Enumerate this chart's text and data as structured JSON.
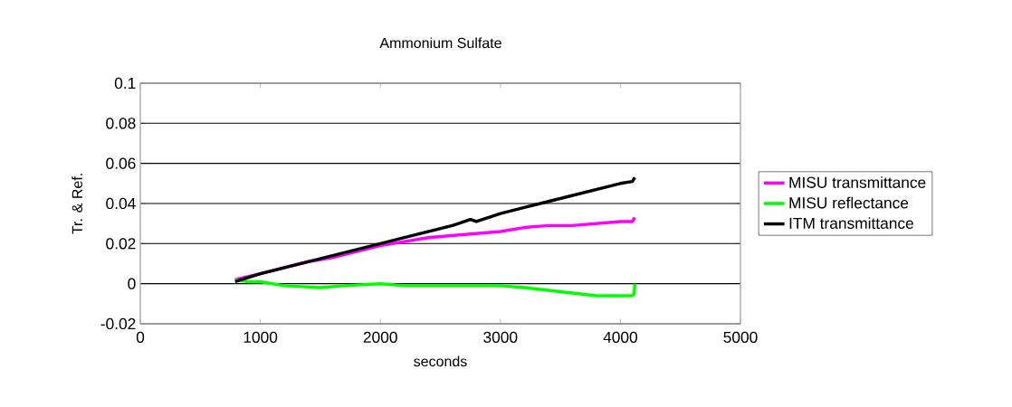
{
  "chart_data": {
    "type": "line",
    "title": "Ammonium Sulfate",
    "xlabel": "seconds",
    "ylabel": "Tr. & Ref.",
    "xlim": [
      0,
      5000
    ],
    "xticks": [
      0,
      1000,
      2000,
      3000,
      4000,
      5000
    ],
    "ylim": [
      -0.02,
      0.1
    ],
    "yticks": [
      -0.02,
      0,
      0.02,
      0.04,
      0.06,
      0.08,
      0.1
    ],
    "grid": "y",
    "legend": "right",
    "marker": "none",
    "line_style": "solid",
    "series": [
      {
        "name": "MISU transmittance",
        "color": "#ff00ff",
        "x": [
          790,
          1000,
          1200,
          1400,
          1600,
          1800,
          2000,
          2200,
          2400,
          2600,
          2800,
          3000,
          3200,
          3400,
          3600,
          3800,
          4000,
          4100,
          4120
        ],
        "values": [
          0.002,
          0.005,
          0.008,
          0.011,
          0.013,
          0.016,
          0.019,
          0.021,
          0.023,
          0.024,
          0.025,
          0.026,
          0.028,
          0.029,
          0.029,
          0.03,
          0.031,
          0.031,
          0.033
        ]
      },
      {
        "name": "MISU reflectance",
        "color": "#00ff00",
        "x": [
          790,
          900,
          1000,
          1200,
          1500,
          1700,
          2000,
          2200,
          2400,
          2600,
          2800,
          3000,
          3200,
          3500,
          3800,
          4000,
          4100,
          4115,
          4120
        ],
        "values": [
          0.002,
          0.001,
          0.001,
          -0.001,
          -0.002,
          -0.001,
          0.0,
          -0.001,
          -0.001,
          -0.001,
          -0.001,
          -0.001,
          -0.002,
          -0.004,
          -0.006,
          -0.006,
          -0.006,
          -0.005,
          0.0
        ]
      },
      {
        "name": "ITM transmittance",
        "color": "#000000",
        "x": [
          790,
          1000,
          1200,
          1400,
          1600,
          1800,
          2000,
          2200,
          2400,
          2600,
          2750,
          2800,
          3000,
          3200,
          3400,
          3600,
          3800,
          4000,
          4100,
          4120
        ],
        "values": [
          0.001,
          0.005,
          0.008,
          0.011,
          0.014,
          0.017,
          0.02,
          0.023,
          0.026,
          0.029,
          0.032,
          0.031,
          0.035,
          0.038,
          0.041,
          0.044,
          0.047,
          0.05,
          0.051,
          0.053
        ]
      }
    ]
  }
}
